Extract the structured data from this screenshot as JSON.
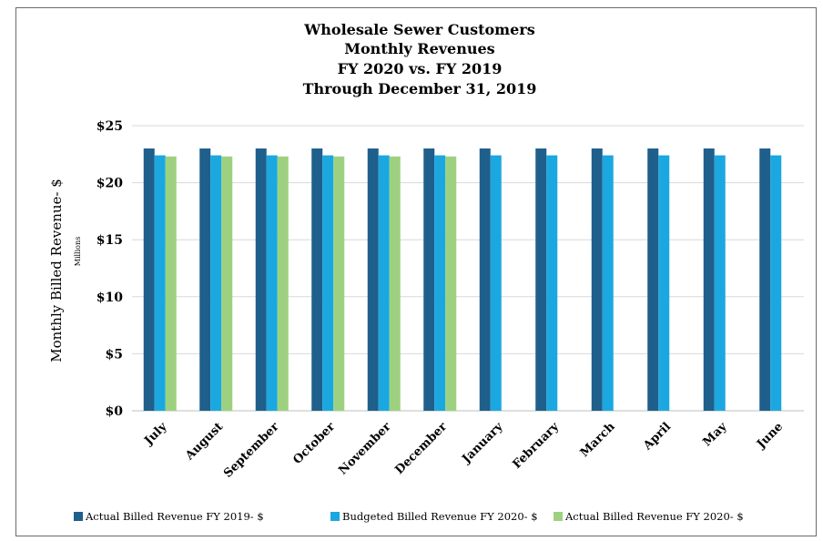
{
  "chart_data": {
    "type": "bar",
    "title_lines": [
      "Wholesale Sewer Customers",
      "Monthly Revenues",
      "FY 2020 vs. FY 2019",
      "Through December 31, 2019"
    ],
    "ylabel": "Monthly Billed Revenue- $",
    "yunit": "Millions",
    "xlabel": "",
    "ylim": [
      0,
      25
    ],
    "yticks": [
      0,
      5,
      10,
      15,
      20,
      25
    ],
    "ytick_labels": [
      "$0",
      "$5",
      "$10",
      "$15",
      "$20",
      "$25"
    ],
    "grid": true,
    "legend_position": "bottom",
    "categories": [
      "July",
      "August",
      "September",
      "October",
      "November",
      "December",
      "January",
      "February",
      "March",
      "April",
      "May",
      "June"
    ],
    "series": [
      {
        "name": "Actual Billed Revenue FY 2019- $",
        "color": "#1f5f8b",
        "values": [
          23.0,
          23.0,
          23.0,
          23.0,
          23.0,
          23.0,
          23.0,
          23.0,
          23.0,
          23.0,
          23.0,
          23.0
        ]
      },
      {
        "name": "Budgeted Billed Revenue FY 2020- $",
        "color": "#1ba8e0",
        "values": [
          22.4,
          22.4,
          22.4,
          22.4,
          22.4,
          22.4,
          22.4,
          22.4,
          22.4,
          22.4,
          22.4,
          22.4
        ]
      },
      {
        "name": "Actual Billed Revenue FY 2020- $",
        "color": "#9ed17f",
        "values": [
          22.3,
          22.3,
          22.3,
          22.3,
          22.3,
          22.3,
          null,
          null,
          null,
          null,
          null,
          null
        ]
      }
    ]
  }
}
